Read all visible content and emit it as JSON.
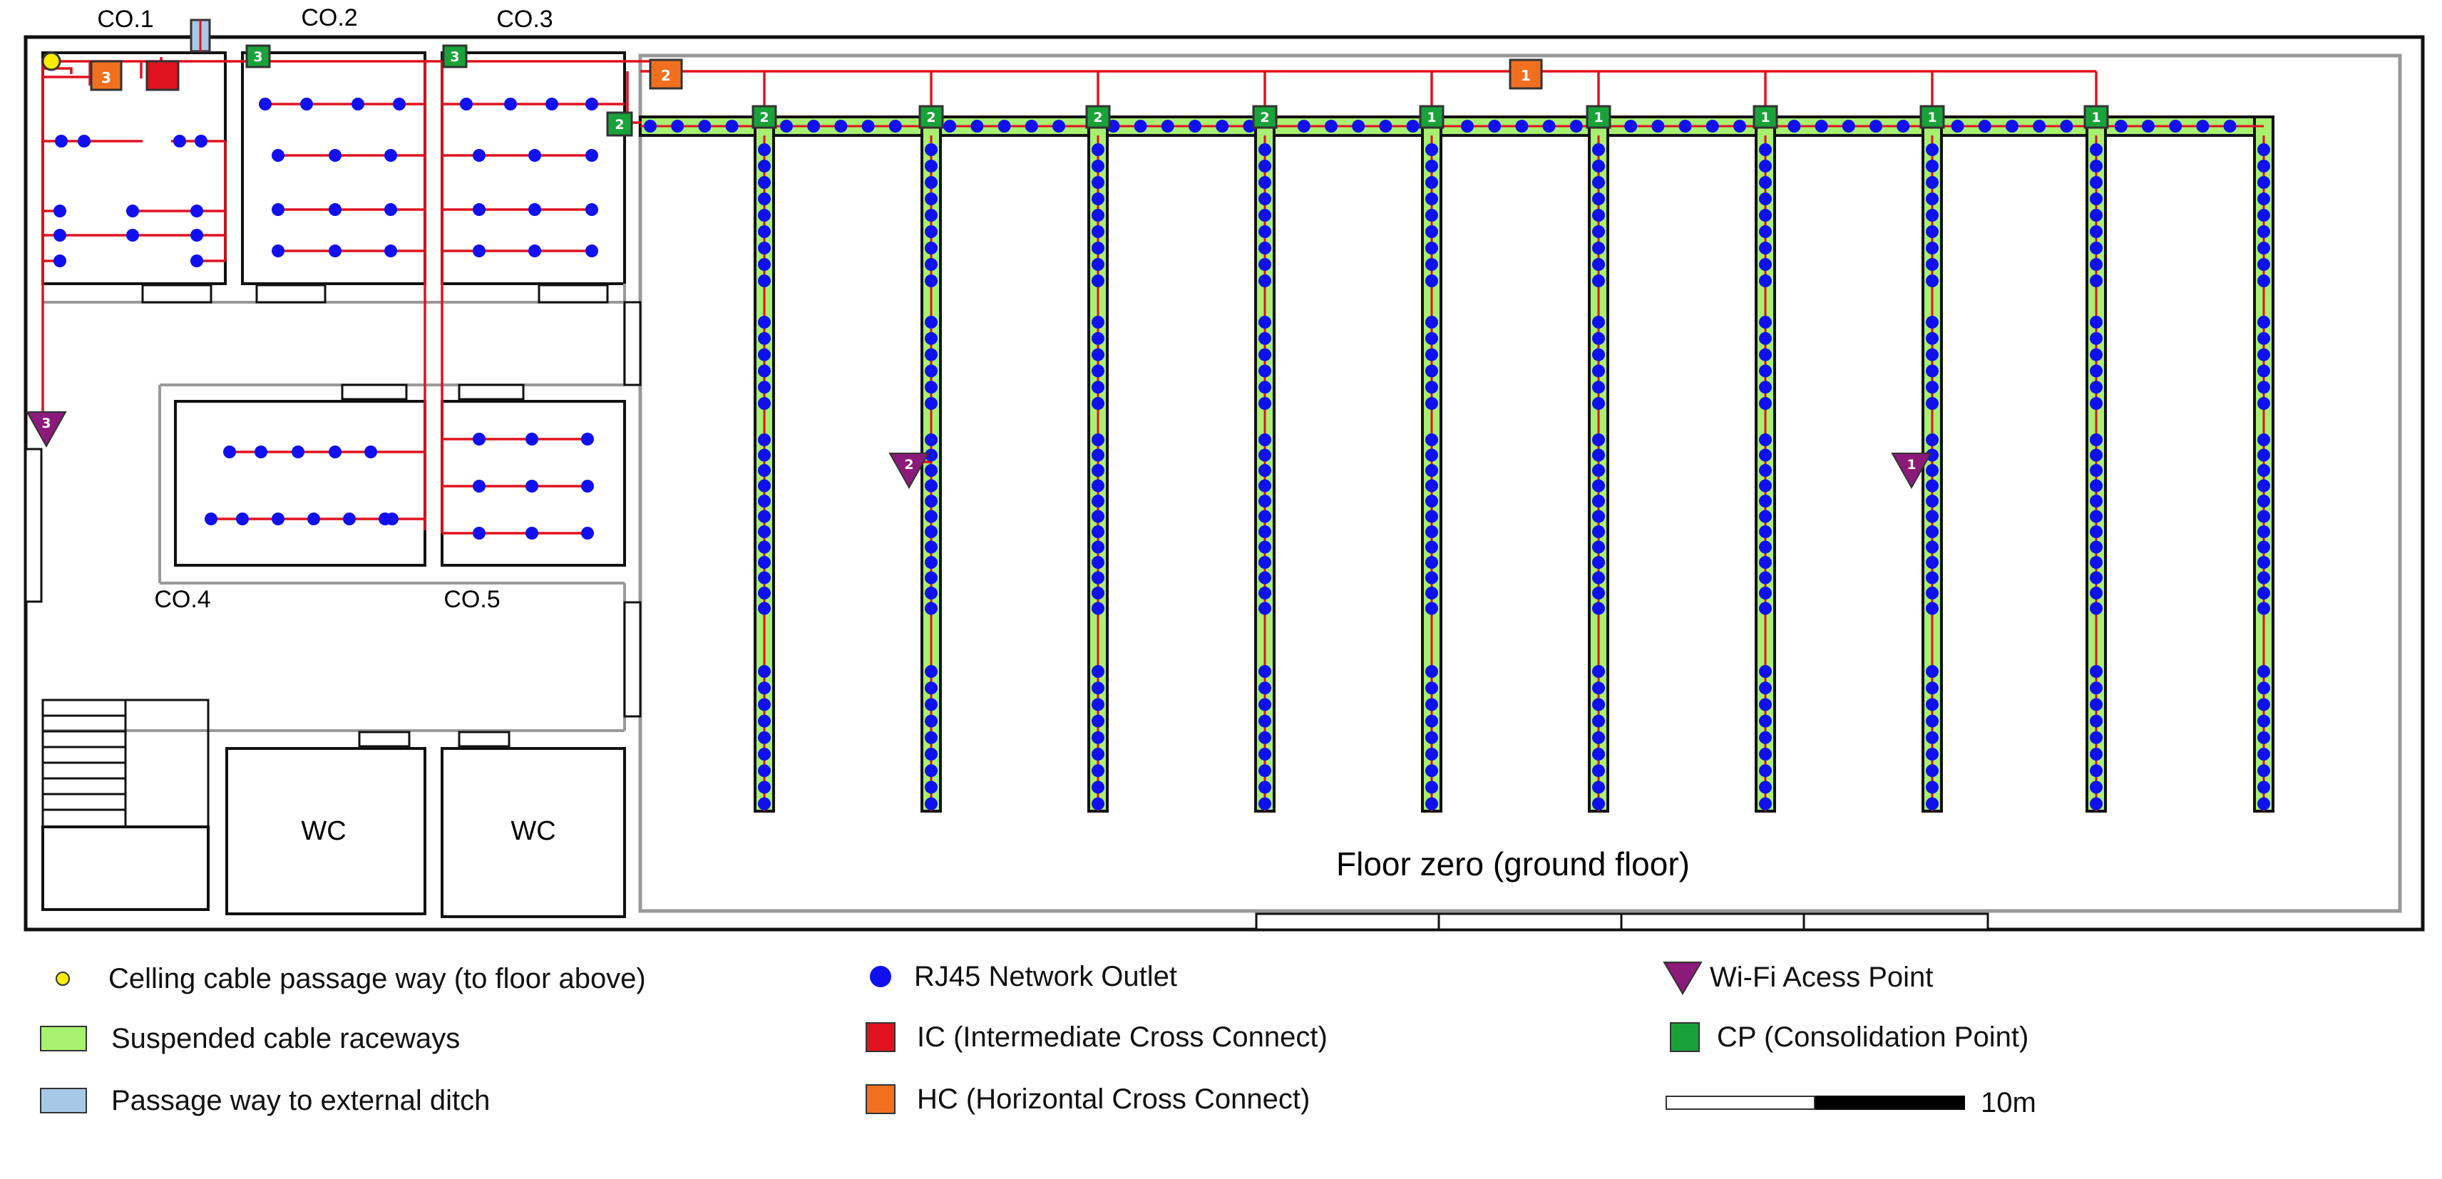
{
  "rooms": {
    "co1": "CO.1",
    "co2": "CO.2",
    "co3": "CO.3",
    "co4": "CO.4",
    "co5": "CO.5",
    "wc1": "WC",
    "wc2": "WC"
  },
  "floor_label": "Floor zero (ground floor)",
  "hc_labels": {
    "co1": "3",
    "co3": "2",
    "main": "1"
  },
  "cp_labels": {
    "co2": "3",
    "co3": "3",
    "main": "2",
    "columns": [
      "2",
      "2",
      "2",
      "2",
      "1",
      "1",
      "1",
      "1",
      "1"
    ]
  },
  "ap_labels": [
    "3",
    "2",
    "1"
  ],
  "legend": {
    "ceiling_passage": "Celling cable passage way (to floor above)",
    "raceways": "Suspended cable raceways",
    "ditch": "Passage way to external ditch",
    "outlet": "RJ45 Network Outlet",
    "ic": "IC (Intermediate Cross Connect)",
    "hc": "HC (Horizontal Cross Connect)",
    "ap": "Wi-Fi Acess Point",
    "cp": "CP (Consolidation Point)",
    "scale": "10m"
  },
  "colors": {
    "cable": "#e0121f",
    "outlet": "#1010ee",
    "raceway": "#a8f070",
    "ic": "#e0121f",
    "hc": "#f07020",
    "cp": "#1aa23a",
    "ap": "#8b1a7a",
    "ditch": "#a8c8e8",
    "ceiling_passage": "#ffee00"
  }
}
